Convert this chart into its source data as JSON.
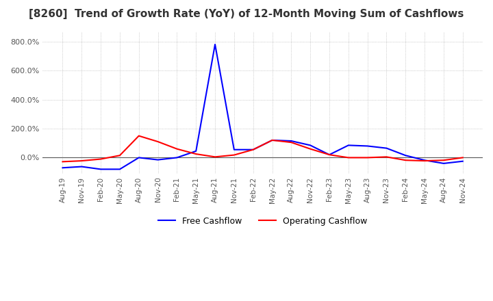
{
  "title": "[8260]  Trend of Growth Rate (YoY) of 12-Month Moving Sum of Cashflows",
  "title_fontsize": 11,
  "ylim": [
    -110,
    870
  ],
  "yticks": [
    0,
    200,
    400,
    600,
    800
  ],
  "yticklabels": [
    "0.0%",
    "200.0%",
    "400.0%",
    "600.0%",
    "800.0%"
  ],
  "background_color": "#ffffff",
  "grid_color": "#aaaaaa",
  "legend_labels": [
    "Operating Cashflow",
    "Free Cashflow"
  ],
  "legend_colors": [
    "#ff0000",
    "#0000ff"
  ],
  "x_labels": [
    "Aug-19",
    "Nov-19",
    "Feb-20",
    "May-20",
    "Aug-20",
    "Nov-20",
    "Feb-21",
    "May-21",
    "Aug-21",
    "Nov-21",
    "Feb-22",
    "May-22",
    "Aug-22",
    "Nov-22",
    "Feb-23",
    "May-23",
    "Aug-23",
    "Nov-23",
    "Feb-24",
    "May-24",
    "Aug-24",
    "Nov-24"
  ],
  "operating_cashflow": [
    -28,
    -22,
    -10,
    15,
    150,
    110,
    60,
    25,
    5,
    18,
    55,
    120,
    105,
    60,
    20,
    0,
    0,
    5,
    -18,
    -22,
    -18,
    0
  ],
  "free_cashflow": [
    -70,
    -62,
    -80,
    -80,
    0,
    -15,
    0,
    45,
    780,
    55,
    55,
    120,
    115,
    85,
    20,
    85,
    80,
    65,
    15,
    -18,
    -40,
    -25
  ]
}
